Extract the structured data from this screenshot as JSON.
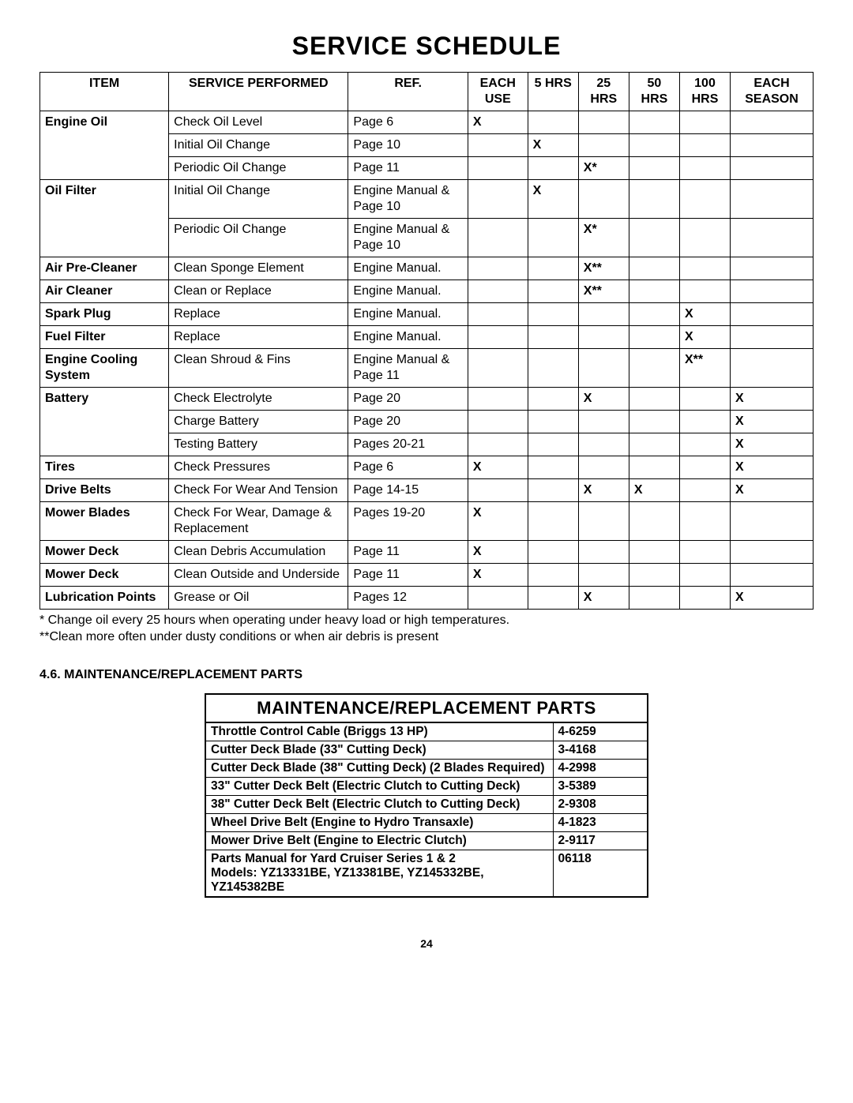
{
  "title": "SERVICE SCHEDULE",
  "sched_headers": {
    "item": "ITEM",
    "service": "SERVICE PERFORMED",
    "ref": "REF.",
    "each_use": "EACH USE",
    "h5": "5 HRS",
    "h25": "25 HRS",
    "h50": "50 HRS",
    "h100": "100 HRS",
    "each_season": "EACH SEASON"
  },
  "rows": [
    {
      "item": "Engine Oil",
      "rowspan": 3,
      "service": "Check Oil Level",
      "ref": "Page 6",
      "each_use": "X",
      "h5": "",
      "h25": "",
      "h50": "",
      "h100": "",
      "season": ""
    },
    {
      "service": "Initial Oil Change",
      "ref": "Page 10",
      "each_use": "",
      "h5": "X",
      "h25": "",
      "h50": "",
      "h100": "",
      "season": ""
    },
    {
      "service": "Periodic Oil Change",
      "ref": "Page 11",
      "each_use": "",
      "h5": "",
      "h25": "X*",
      "h50": "",
      "h100": "",
      "season": ""
    },
    {
      "item": "Oil Filter",
      "rowspan": 2,
      "service": "Initial Oil Change",
      "ref": "Engine Manual & Page 10",
      "each_use": "",
      "h5": "X",
      "h25": "",
      "h50": "",
      "h100": "",
      "season": ""
    },
    {
      "service": "Periodic Oil Change",
      "ref": "Engine Manual & Page 10",
      "each_use": "",
      "h5": "",
      "h25": "X*",
      "h50": "",
      "h100": "",
      "season": ""
    },
    {
      "item": "Air Pre-Cleaner",
      "rowspan": 1,
      "service": "Clean Sponge Element",
      "ref": "Engine Manual.",
      "each_use": "",
      "h5": "",
      "h25": "X**",
      "h50": "",
      "h100": "",
      "season": ""
    },
    {
      "item": "Air Cleaner",
      "rowspan": 1,
      "service": "Clean or Replace",
      "ref": "Engine Manual.",
      "each_use": "",
      "h5": "",
      "h25": "X**",
      "h50": "",
      "h100": "",
      "season": ""
    },
    {
      "item": "Spark Plug",
      "rowspan": 1,
      "service": "Replace",
      "ref": "Engine Manual.",
      "each_use": "",
      "h5": "",
      "h25": "",
      "h50": "",
      "h100": "X",
      "season": ""
    },
    {
      "item": "Fuel Filter",
      "rowspan": 1,
      "service": "Replace",
      "ref": "Engine Manual.",
      "each_use": "",
      "h5": "",
      "h25": "",
      "h50": "",
      "h100": "X",
      "season": ""
    },
    {
      "item": "Engine Cooling System",
      "rowspan": 1,
      "service": "Clean Shroud & Fins",
      "ref": "Engine Manual & Page 11",
      "each_use": "",
      "h5": "",
      "h25": "",
      "h50": "",
      "h100": "X**",
      "season": ""
    },
    {
      "item": "Battery",
      "rowspan": 3,
      "service": "Check Electrolyte",
      "ref": "Page 20",
      "each_use": "",
      "h5": "",
      "h25": "X",
      "h50": "",
      "h100": "",
      "season": "X"
    },
    {
      "service": "Charge Battery",
      "ref": "Page 20",
      "each_use": "",
      "h5": "",
      "h25": "",
      "h50": "",
      "h100": "",
      "season": "X"
    },
    {
      "service": "Testing Battery",
      "ref": "Pages 20-21",
      "each_use": "",
      "h5": "",
      "h25": "",
      "h50": "",
      "h100": "",
      "season": "X"
    },
    {
      "item": "Tires",
      "rowspan": 1,
      "service": "Check Pressures",
      "ref": "Page 6",
      "each_use": "X",
      "h5": "",
      "h25": "",
      "h50": "",
      "h100": "",
      "season": "X"
    },
    {
      "item": "Drive Belts",
      "rowspan": 1,
      "service": "Check For Wear And Tension",
      "ref": "Page 14-15",
      "each_use": "",
      "h5": "",
      "h25": "X",
      "h50": "X",
      "h100": "",
      "season": "X"
    },
    {
      "item": "Mower Blades",
      "rowspan": 1,
      "service": "Check For Wear, Damage & Replacement",
      "ref": "Pages 19-20",
      "each_use": "X",
      "h5": "",
      "h25": "",
      "h50": "",
      "h100": "",
      "season": ""
    },
    {
      "item": "Mower Deck",
      "rowspan": 1,
      "service": "Clean Debris Accumulation",
      "ref": "Page 11",
      "each_use": "X",
      "h5": "",
      "h25": "",
      "h50": "",
      "h100": "",
      "season": ""
    },
    {
      "item": "Mower Deck",
      "rowspan": 1,
      "service": "Clean Outside and Underside",
      "ref": "Page 11",
      "each_use": "X",
      "h5": "",
      "h25": "",
      "h50": "",
      "h100": "",
      "season": ""
    },
    {
      "item": "Lubrication Points",
      "rowspan": 1,
      "service": "Grease or Oil",
      "ref": "Pages 12",
      "each_use": "",
      "h5": "",
      "h25": "X",
      "h50": "",
      "h100": "",
      "season": "X"
    }
  ],
  "note_star": "* Change oil every 25 hours when operating under heavy load or high temperatures.",
  "note_dblstar": "**Clean more often under dusty conditions or when air debris is present",
  "section_heading": "4.6.    MAINTENANCE/REPLACEMENT PARTS",
  "parts_title": "MAINTENANCE/REPLACEMENT PARTS",
  "parts": [
    {
      "desc": "Throttle Control Cable (Briggs 13 HP)",
      "num": "4-6259"
    },
    {
      "desc": "Cutter Deck Blade (33\" Cutting Deck)",
      "num": "3-4168"
    },
    {
      "desc": "Cutter Deck Blade (38\" Cutting Deck) (2 Blades Required)",
      "num": "4-2998"
    },
    {
      "desc": "33\" Cutter Deck Belt (Electric Clutch to Cutting Deck)",
      "num": "3-5389"
    },
    {
      "desc": "38\" Cutter Deck Belt (Electric Clutch to Cutting Deck)",
      "num": "2-9308"
    },
    {
      "desc": "Wheel Drive Belt (Engine to Hydro Transaxle)",
      "num": "4-1823"
    },
    {
      "desc": "Mower Drive Belt (Engine to Electric Clutch)",
      "num": "2-9117"
    },
    {
      "desc": "Parts Manual for  Yard Cruiser Series 1 & 2\nModels: YZ13331BE, YZ13381BE, YZ145332BE, YZ145382BE",
      "num": "06118"
    }
  ],
  "page_number": "24"
}
